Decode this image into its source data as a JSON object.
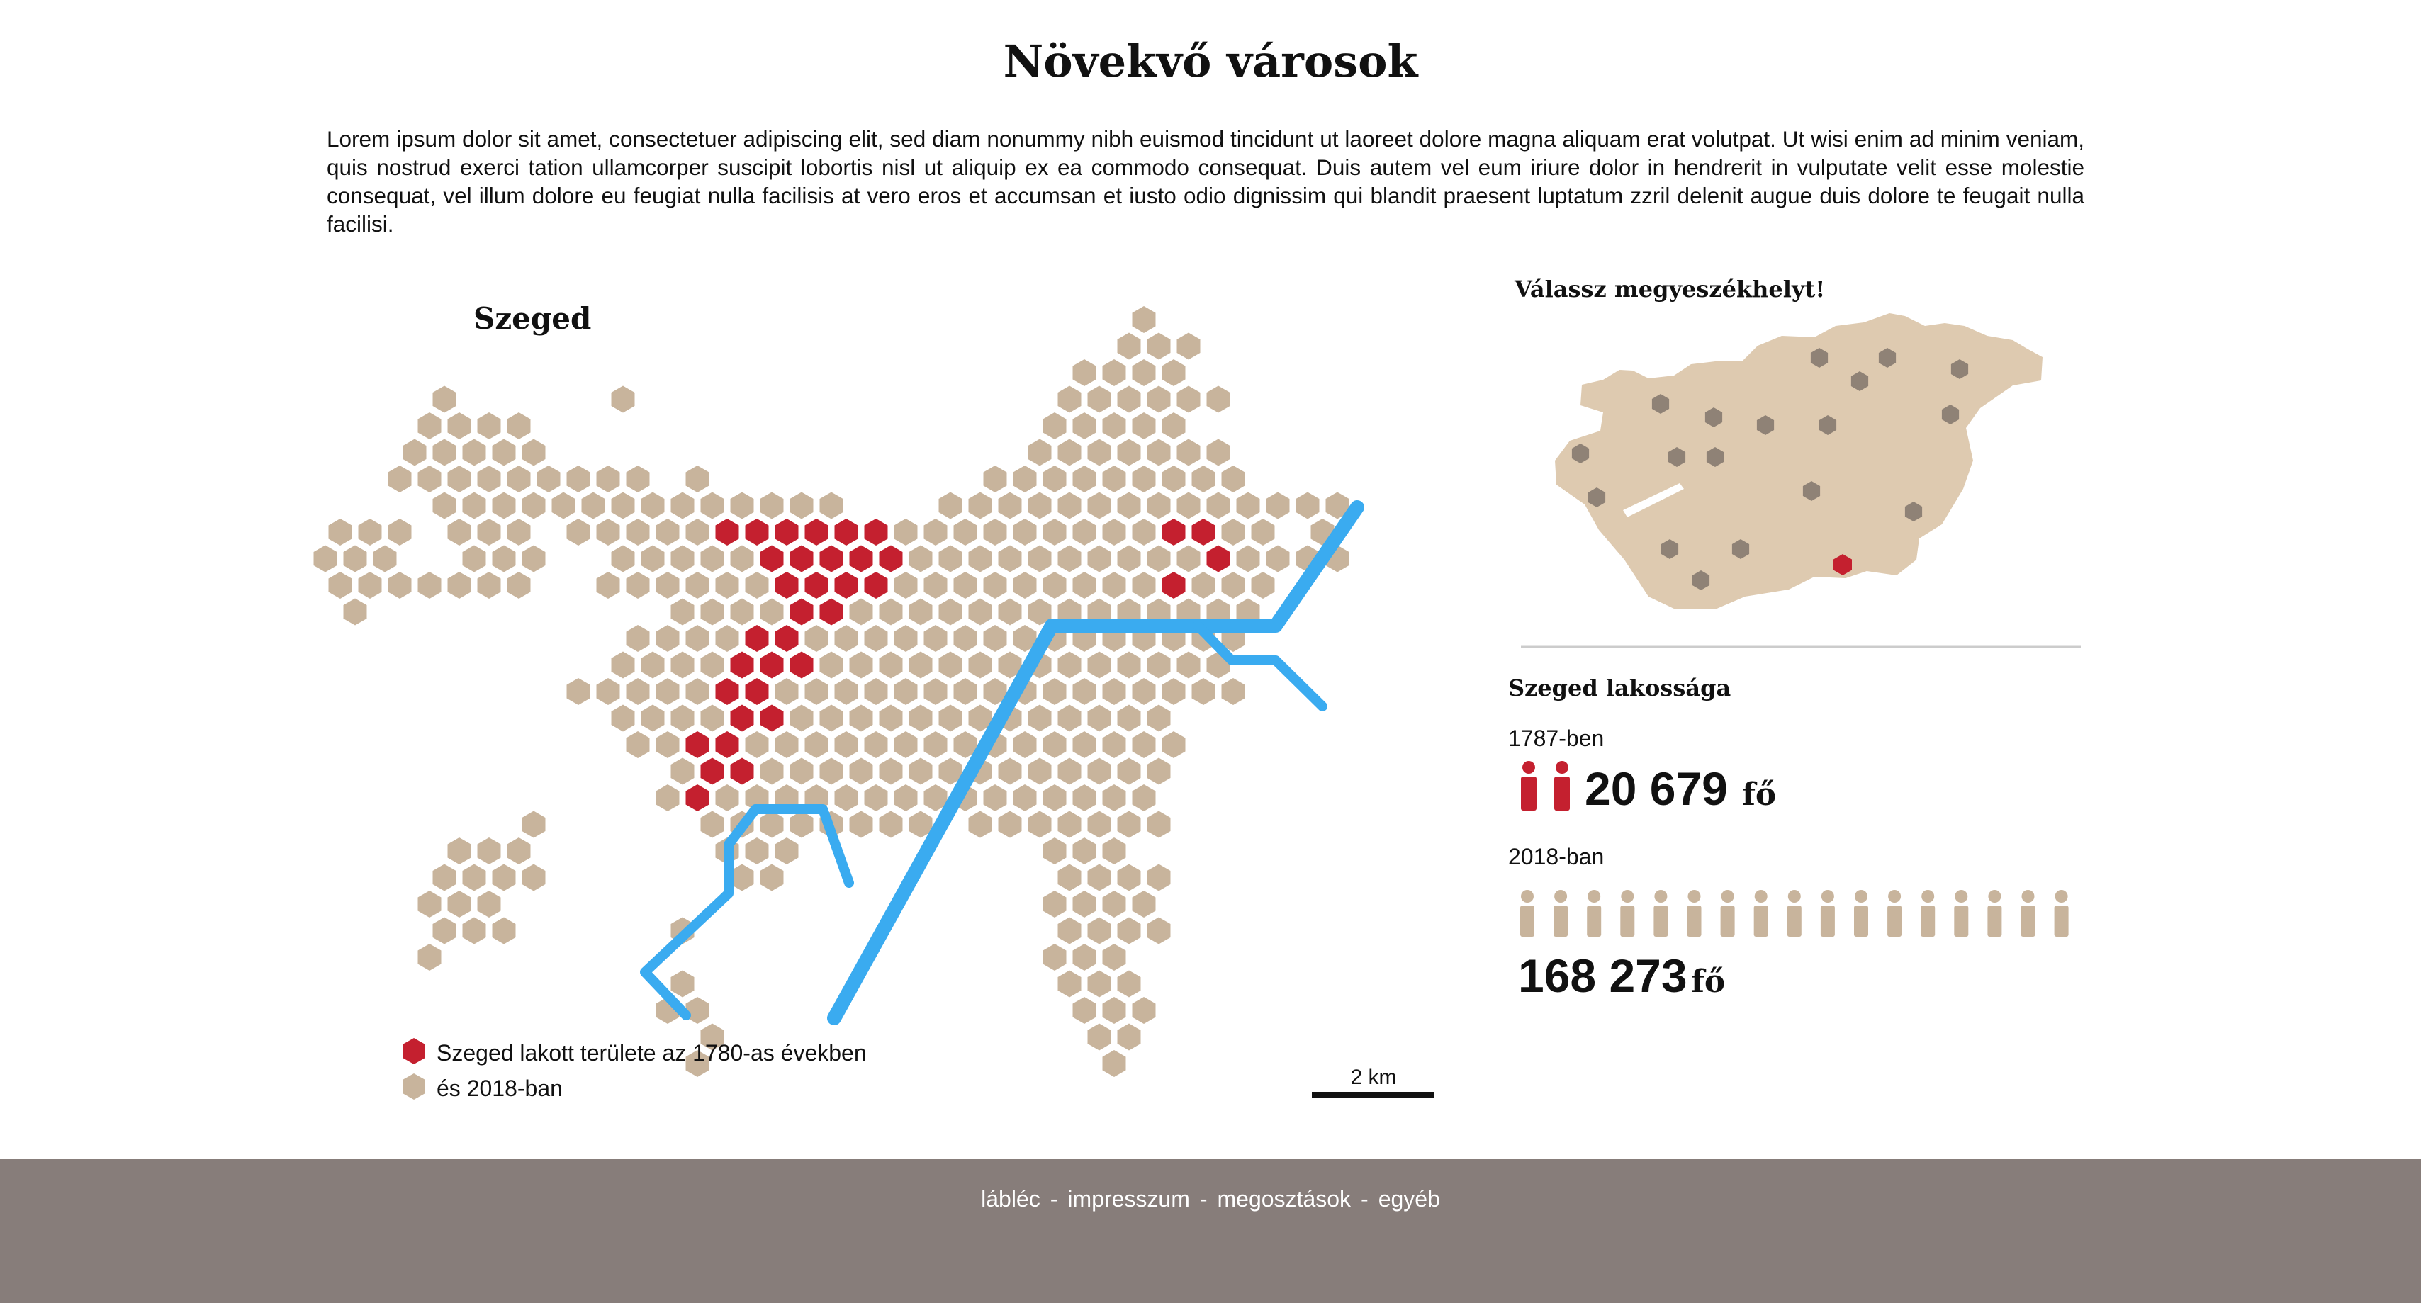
{
  "page": {
    "title": "Növekvő városok",
    "intro": "Lorem ipsum dolor sit amet, consectetuer adipiscing elit, sed diam nonummy nibh euismod tincidunt ut laoreet dolore magna aliquam erat volutpat. Ut wisi enim ad minim veniam, quis nostrud exerci tation ullamcorper suscipit lobortis nisl ut aliquip ex ea commodo consequat. Duis autem vel eum iriure dolor in hendrerit in vulputate velit esse molestie consequat, vel illum dolore eu feugiat nulla facilisis at vero eros et accumsan et iusto odio dignissim qui blandit praesent luptatum zzril delenit augue duis dolore te feugait nulla facilisi."
  },
  "map": {
    "city": "Szeged",
    "legend_old": "Szeged lakott területe az 1780-as években",
    "legend_new": "és 2018-ban",
    "scale": "2 km"
  },
  "selector": {
    "heading": "Válassz megyeszékhelyt!"
  },
  "population": {
    "heading": "Szeged lakossága",
    "year1_label": "1787-ben",
    "year1_value": "20 679",
    "year1_icons": 2,
    "year2_label": "2018-ban",
    "year2_value": "168 273",
    "year2_icons": 17,
    "unit": "fő"
  },
  "footer": {
    "links": [
      "lábléc",
      "impresszum",
      "megosztások",
      "egyéb"
    ],
    "separator": "-"
  },
  "colors": {
    "old_area": "#c4202f",
    "new_area": "#c8b49c",
    "river": "#3aabf0",
    "country": "#decab0",
    "county_seat": "#8f8276",
    "footer_bg": "#877d7a"
  }
}
